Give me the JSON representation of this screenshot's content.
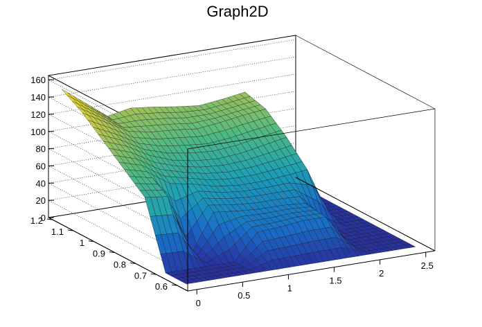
{
  "chart_data": {
    "type": "surface",
    "title": "Graph2D",
    "xlabel": "",
    "ylabel": "",
    "zlabel": "",
    "colormap": "viridis-like (blue to yellow)",
    "x_ticks": [
      "0",
      "0.5",
      "1",
      "1.5",
      "2",
      "2.5"
    ],
    "y_ticks": [
      "0.6",
      "0.7",
      "0.8",
      "0.9",
      "1",
      "1.1",
      "1.2"
    ],
    "z_ticks": [
      "0",
      "20",
      "40",
      "60",
      "80",
      "100",
      "120",
      "140",
      "160"
    ],
    "xlim": [
      -0.1,
      2.6
    ],
    "ylim": [
      0.55,
      1.22
    ],
    "zlim": [
      0,
      165
    ],
    "grid": "z-gridlines on back walls",
    "x_grid": [
      0.0,
      0.25,
      0.5,
      0.75,
      1.0,
      1.25,
      1.5,
      1.75,
      2.0,
      2.25,
      2.5
    ],
    "y_grid": [
      0.6,
      0.7,
      0.8,
      0.9,
      1.0,
      1.1,
      1.2
    ],
    "z_values": [
      [
        0,
        0,
        0,
        0,
        0,
        0,
        0,
        0,
        0,
        0,
        0
      ],
      [
        0,
        0,
        0,
        0,
        30,
        32,
        35,
        35,
        0,
        0,
        0
      ],
      [
        75,
        72,
        0,
        45,
        42,
        40,
        40,
        38,
        0,
        0,
        0
      ],
      [
        95,
        88,
        70,
        65,
        58,
        55,
        55,
        57,
        60,
        0,
        0
      ],
      [
        115,
        105,
        90,
        80,
        75,
        73,
        75,
        80,
        85,
        0,
        0
      ],
      [
        135,
        120,
        105,
        100,
        98,
        95,
        98,
        102,
        105,
        0,
        0
      ],
      [
        150,
        130,
        110,
        115,
        112,
        108,
        105,
        108,
        112,
        0,
        0
      ]
    ]
  }
}
